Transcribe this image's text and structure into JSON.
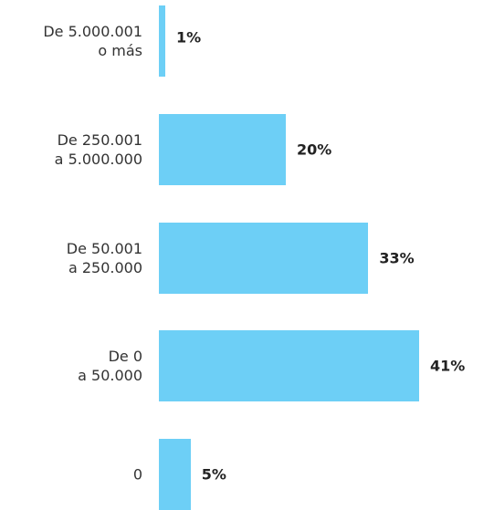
{
  "chart_data": {
    "type": "bar",
    "orientation": "horizontal",
    "categories": [
      "De 5.000.001\no más",
      "De 250.001\na 5.000.000",
      "De 50.001\na 250.000",
      "De 0\na 50.000",
      "0"
    ],
    "values": [
      1,
      20,
      33,
      41,
      5
    ],
    "value_labels": [
      "1%",
      "20%",
      "33%",
      "41%",
      "5%"
    ],
    "color": "#6dcff6"
  }
}
